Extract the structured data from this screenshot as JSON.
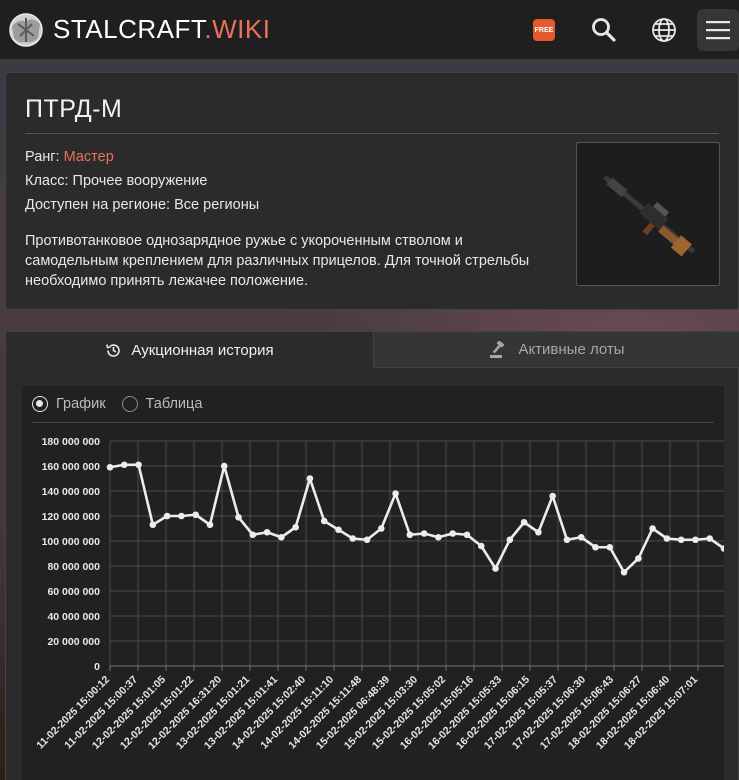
{
  "header": {
    "logo_name": "STALCRAFT",
    "logo_tld": ".WIKI",
    "free_badge": "FREE",
    "icons": [
      "free-icon",
      "search-icon",
      "globe-icon",
      "menu-icon"
    ],
    "accent_color": "#e8735b"
  },
  "item": {
    "title": "ПТРД-М",
    "rank_label": "Ранг: ",
    "rank_value": "Мастер",
    "class_text": "Класс: Прочее вооружение",
    "region_text": "Доступен на регионе: Все регионы",
    "description": "Противотанковое однозарядное ружье с укороченным стволом и самодельным креплением для различных прицелов. Для точной стрельбы необходимо принять лежачее положение."
  },
  "tabs": [
    {
      "label": "Аукционная история",
      "icon": "history-icon",
      "active": true
    },
    {
      "label": "Активные лоты",
      "icon": "gavel-icon",
      "active": false
    }
  ],
  "view_toggle": {
    "options": [
      {
        "label": "График",
        "selected": true
      },
      {
        "label": "Таблица",
        "selected": false
      }
    ]
  },
  "chart_data": {
    "type": "line",
    "ylim": [
      0,
      180000000
    ],
    "y_ticks": [
      "0",
      "20 000 000",
      "40 000 000",
      "60 000 000",
      "80 000 000",
      "100 000 000",
      "120 000 000",
      "140 000 000",
      "160 000 000",
      "180 000 000"
    ],
    "x_labels": [
      "11-02-2025 15:00:12",
      "11-02-2025 15:00:37",
      "12-02-2025 15:01:05",
      "12-02-2025 15:01:22",
      "12-02-2025 16:31:20",
      "13-02-2025 15:01:21",
      "13-02-2025 15:01:41",
      "14-02-2025 15:02:40",
      "14-02-2025 15:11:10",
      "14-02-2025 15:11:48",
      "15-02-2025 06:48:39",
      "15-02-2025 15:03:30",
      "15-02-2025 15:05:02",
      "16-02-2025 15:05:16",
      "16-02-2025 15:05:33",
      "16-02-2025 15:06:15",
      "17-02-2025 15:05:37",
      "17-02-2025 15:06:30",
      "17-02-2025 15:06:43",
      "18-02-2025 15:06:27",
      "18-02-2025 15:06:40",
      "18-02-2025 15:07:01"
    ],
    "values": [
      159000000,
      161000000,
      161000000,
      113000000,
      120000000,
      120000000,
      121000000,
      113000000,
      160000000,
      119000000,
      105000000,
      107000000,
      103000000,
      111000000,
      150000000,
      116000000,
      109000000,
      102000000,
      101000000,
      110000000,
      138000000,
      105000000,
      106000000,
      103000000,
      106000000,
      105000000,
      96000000,
      78000000,
      101000000,
      115000000,
      107000000,
      136000000,
      101000000,
      103000000,
      95000000,
      95000000,
      75000000,
      86000000,
      110000000,
      102000000,
      101000000,
      101000000,
      102000000,
      94000000
    ],
    "line_color": "#ececec",
    "grid": true
  }
}
